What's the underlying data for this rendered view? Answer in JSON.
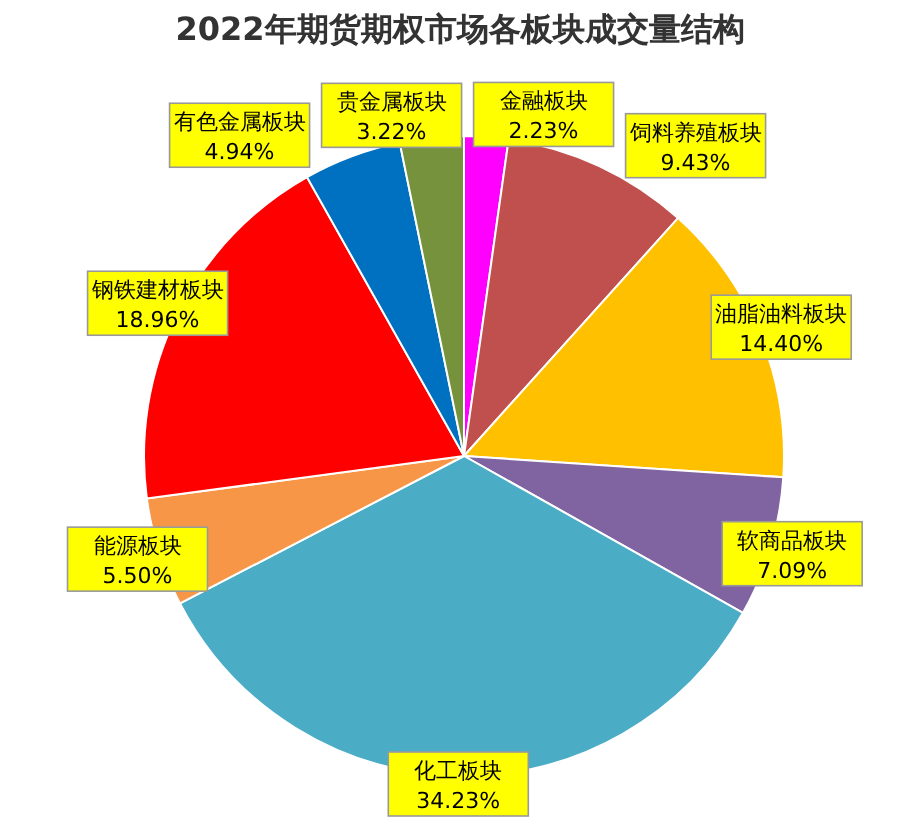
{
  "chart_data": {
    "type": "pie",
    "title": "2022年期货期权市场各板块成交量结构",
    "categories": [
      "金融板块",
      "饲料养殖板块",
      "油脂油料板块",
      "软商品板块",
      "化工板块",
      "能源板块",
      "钢铁建材板块",
      "有色金属板块",
      "贵金属板块"
    ],
    "values": [
      2.23,
      9.43,
      14.4,
      7.09,
      34.23,
      5.5,
      18.96,
      4.94,
      3.22
    ],
    "value_labels": [
      "2.23%",
      "9.43%",
      "14.40%",
      "7.09%",
      "34.23%",
      "5.50%",
      "18.96%",
      "4.94%",
      "3.22%"
    ],
    "colors": [
      "#ff00ff",
      "#c0504d",
      "#ffc000",
      "#8064a2",
      "#4bacc6",
      "#f79646",
      "#ff0000",
      "#0070c0",
      "#76923c"
    ]
  }
}
